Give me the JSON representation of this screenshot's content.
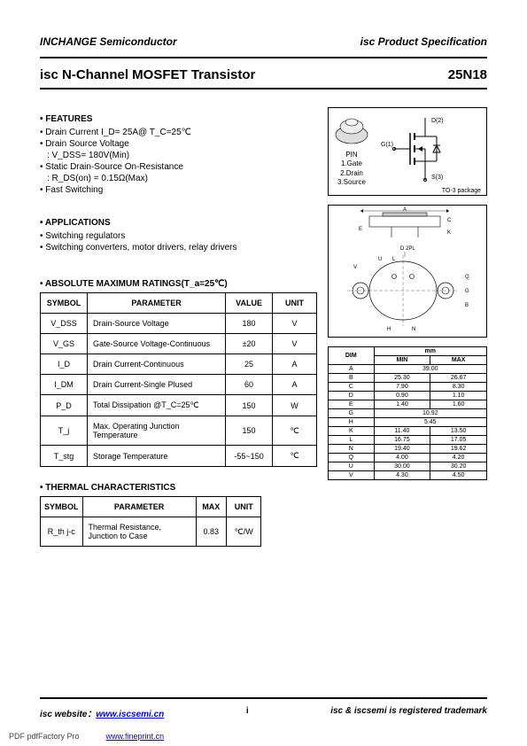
{
  "header": {
    "company": "INCHANGE Semiconductor",
    "docType": "isc Product Specification",
    "title": "isc N-Channel MOSFET Transistor",
    "partNumber": "25N18"
  },
  "features": {
    "heading": "• FEATURES",
    "lines": [
      "• Drain Current    I_D= 25A@ T_C=25℃",
      "• Drain Source Voltage",
      ": V_DSS= 180V(Min)",
      "• Static Drain-Source On-Resistance",
      ": R_DS(on) = 0.15Ω(Max)",
      "• Fast Switching"
    ]
  },
  "applications": {
    "heading": "• APPLICATIONS",
    "lines": [
      "• Switching regulators",
      "• Switching converters, motor drivers, relay drivers"
    ]
  },
  "pinDiagram": {
    "pinLabel": "PIN",
    "pins": [
      "1.Gate",
      "2.Drain",
      "3.Source"
    ],
    "terminals": {
      "d": "D(2)",
      "g": "G(1)",
      "s": "S(3)"
    },
    "package": "TO-3 package"
  },
  "packageDiagram": {
    "labels": [
      "A",
      "C",
      "E",
      "K",
      "L",
      "U",
      "V",
      "H",
      "G",
      "B",
      "N",
      "D 2PL",
      "Q"
    ]
  },
  "absMaxRatings": {
    "heading": "• ABSOLUTE MAXIMUM RATINGS(T_a=25℃)",
    "columns": [
      "SYMBOL",
      "PARAMETER",
      "VALUE",
      "UNIT"
    ],
    "rows": [
      {
        "symbol": "V_DSS",
        "param": "Drain-Source Voltage",
        "value": "180",
        "unit": "V"
      },
      {
        "symbol": "V_GS",
        "param": "Gate-Source Voltage-Continuous",
        "value": "±20",
        "unit": "V"
      },
      {
        "symbol": "I_D",
        "param": "Drain Current-Continuous",
        "value": "25",
        "unit": "A"
      },
      {
        "symbol": "I_DM",
        "param": "Drain Current-Single Plused",
        "value": "60",
        "unit": "A"
      },
      {
        "symbol": "P_D",
        "param": "Total Dissipation @T_C=25℃",
        "value": "150",
        "unit": "W"
      },
      {
        "symbol": "T_j",
        "param": "Max. Operating Junction Temperature",
        "value": "150",
        "unit": "℃"
      },
      {
        "symbol": "T_stg",
        "param": "Storage Temperature",
        "value": "-55~150",
        "unit": "℃"
      }
    ]
  },
  "thermal": {
    "heading": "• THERMAL CHARACTERISTICS",
    "columns": [
      "SYMBOL",
      "PARAMETER",
      "MAX",
      "UNIT"
    ],
    "rows": [
      {
        "symbol": "R_th j-c",
        "param": "Thermal Resistance, Junction to Case",
        "value": "0.83",
        "unit": "℃/W"
      }
    ]
  },
  "dimensions": {
    "header": {
      "label": "DIM",
      "unit": "mm",
      "min": "MIN",
      "max": "MAX"
    },
    "rows": [
      {
        "dim": "A",
        "min": "39.00",
        "max": ""
      },
      {
        "dim": "B",
        "min": "25.30",
        "max": "26.67"
      },
      {
        "dim": "C",
        "min": "7.90",
        "max": "8.30"
      },
      {
        "dim": "D",
        "min": "0.90",
        "max": "1.10"
      },
      {
        "dim": "E",
        "min": "1.40",
        "max": "1.60"
      },
      {
        "dim": "G",
        "min": "10.92",
        "max": ""
      },
      {
        "dim": "H",
        "min": "5.45",
        "max": ""
      },
      {
        "dim": "K",
        "min": "11.40",
        "max": "13.50"
      },
      {
        "dim": "L",
        "min": "16.75",
        "max": "17.05"
      },
      {
        "dim": "N",
        "min": "19.40",
        "max": "19.62"
      },
      {
        "dim": "Q",
        "min": "4.00",
        "max": "4.20"
      },
      {
        "dim": "U",
        "min": "30.00",
        "max": "30.20"
      },
      {
        "dim": "V",
        "min": "4.30",
        "max": "4.50"
      }
    ]
  },
  "footer": {
    "left": "isc website：",
    "url": "www.iscsemi.cn",
    "mark": "i",
    "right": "isc & iscsemi is registered trademark"
  },
  "pdfNote": {
    "text": "PDF  pdfFactory Pro",
    "url": "www.fineprint.cn"
  }
}
